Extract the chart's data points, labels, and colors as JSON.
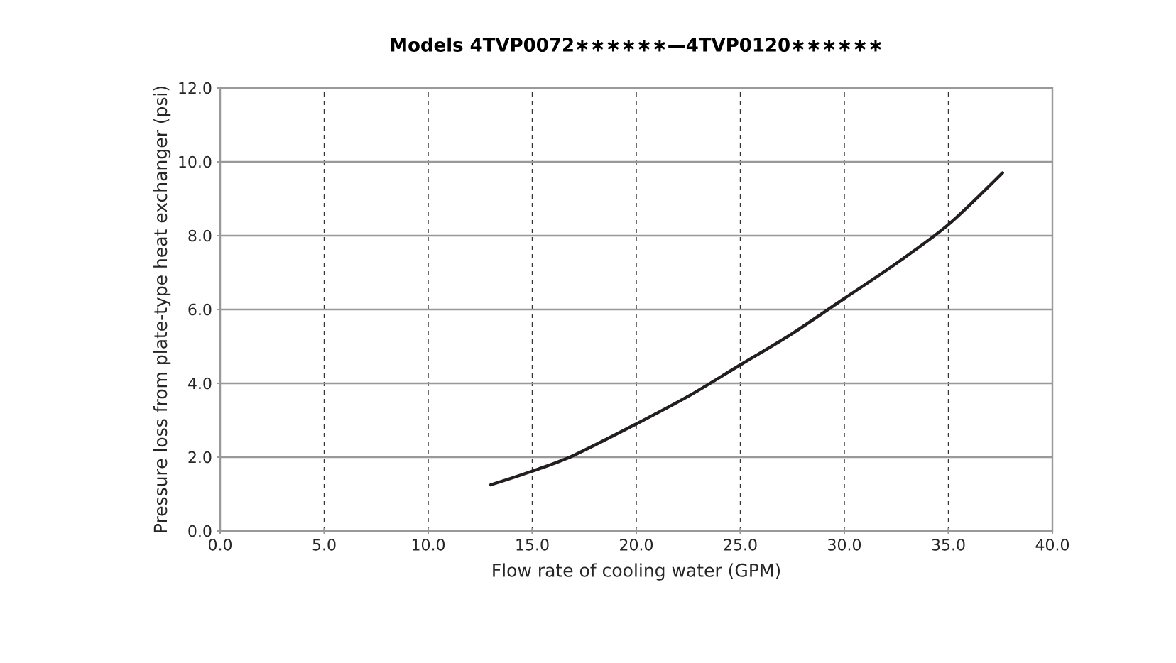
{
  "chart_data": {
    "type": "line",
    "title": "Models 4TVP0072∗∗∗∗∗∗—4TVP0120∗∗∗∗∗∗",
    "xlabel": "Flow rate of cooling water (GPM)",
    "ylabel": "Pressure loss from plate-type heat exchanger (psi)",
    "x": [
      13.0,
      15.0,
      17.0,
      20.0,
      22.5,
      25.0,
      27.5,
      30.0,
      32.5,
      35.0,
      37.6
    ],
    "series": [
      {
        "color": "#231f20",
        "values": [
          1.25,
          1.62,
          2.05,
          2.9,
          3.65,
          4.5,
          5.35,
          6.3,
          7.25,
          8.3,
          9.7
        ]
      }
    ],
    "xlim": [
      0,
      40
    ],
    "ylim": [
      0,
      12
    ],
    "xticks": [
      {
        "value": 0,
        "label": "0.0"
      },
      {
        "value": 5,
        "label": "5.0"
      },
      {
        "value": 10,
        "label": "10.0"
      },
      {
        "value": 15,
        "label": "15.0"
      },
      {
        "value": 20,
        "label": "20.0"
      },
      {
        "value": 25,
        "label": "25.0"
      },
      {
        "value": 30,
        "label": "30.0"
      },
      {
        "value": 35,
        "label": "35.0"
      },
      {
        "value": 40,
        "label": "40.0"
      }
    ],
    "yticks": [
      {
        "value": 0,
        "label": "0.0"
      },
      {
        "value": 2,
        "label": "2.0"
      },
      {
        "value": 4,
        "label": "4.0"
      },
      {
        "value": 6,
        "label": "6.0"
      },
      {
        "value": 8,
        "label": "8.0"
      },
      {
        "value": 10,
        "label": "10.0"
      },
      {
        "value": 12,
        "label": "12.0"
      }
    ],
    "grid": true,
    "marker": "none",
    "line_style": "solid"
  }
}
